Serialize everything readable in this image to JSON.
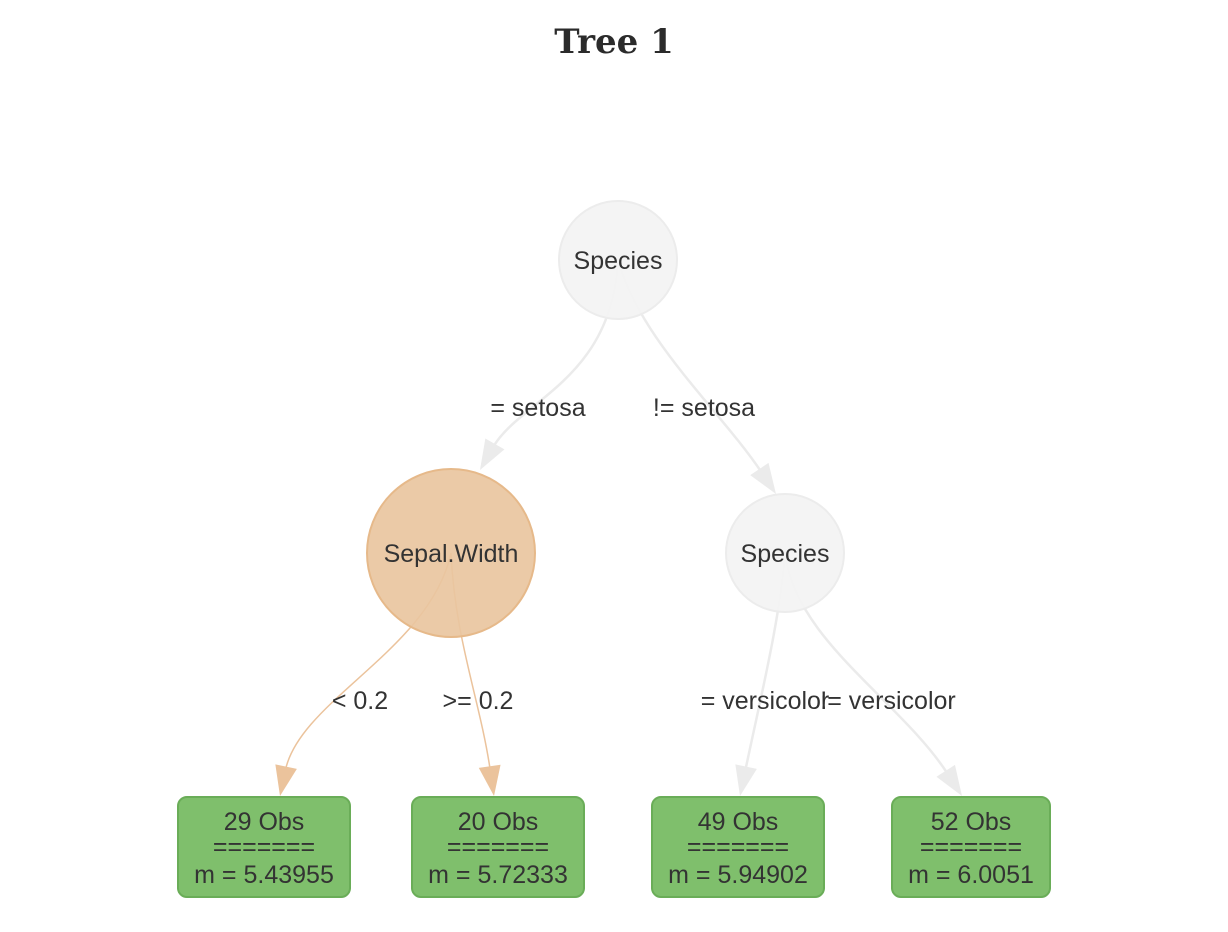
{
  "title": "Tree 1",
  "colors": {
    "gray_node_fill": "#f3f3f3",
    "gray_node_stroke": "#ececec",
    "gray_edge": "#ebebeb",
    "orange_node_fill": "#e9c6a0",
    "orange_node_stroke": "#e6b98a",
    "orange_edge": "#ebc39c",
    "leaf_fill": "#7fbf6c",
    "leaf_stroke": "#6aad58",
    "text": "#333333"
  },
  "nodes": [
    {
      "id": "root",
      "label": "Species",
      "type": "split",
      "color": "gray"
    },
    {
      "id": "sepal",
      "label": "Sepal.Width",
      "type": "split",
      "color": "orange"
    },
    {
      "id": "species2",
      "label": "Species",
      "type": "split",
      "color": "gray"
    },
    {
      "id": "leaf1",
      "type": "leaf",
      "lines": [
        "29 Obs",
        "=======",
        "m = 5.43955"
      ]
    },
    {
      "id": "leaf2",
      "type": "leaf",
      "lines": [
        "20 Obs",
        "=======",
        "m = 5.72333"
      ]
    },
    {
      "id": "leaf3",
      "type": "leaf",
      "lines": [
        "49 Obs",
        "=======",
        "m = 5.94902"
      ]
    },
    {
      "id": "leaf4",
      "type": "leaf",
      "lines": [
        "52 Obs",
        "=======",
        "m = 6.0051"
      ]
    }
  ],
  "edges": [
    {
      "from": "root",
      "to": "sepal",
      "label": "= setosa",
      "color": "gray"
    },
    {
      "from": "root",
      "to": "species2",
      "label": "!= setosa",
      "color": "gray"
    },
    {
      "from": "sepal",
      "to": "leaf1",
      "label": "< 0.2",
      "color": "orange"
    },
    {
      "from": "sepal",
      "to": "leaf2",
      "label": ">= 0.2",
      "color": "orange"
    },
    {
      "from": "species2",
      "to": "leaf3",
      "label": "= versicolor",
      "color": "gray"
    },
    {
      "from": "species2",
      "to": "leaf4",
      "label": "!= versicolor",
      "color": "gray"
    }
  ]
}
